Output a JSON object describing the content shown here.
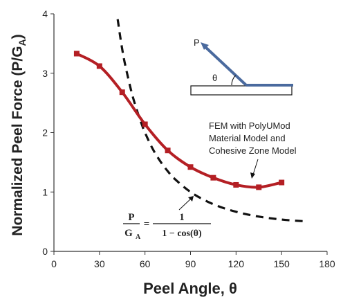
{
  "chart_data": {
    "type": "line",
    "xlabel": "Peel Angle, θ",
    "ylabel": "Normalized Peel Force (P/G",
    "ylabel_sub": "A",
    "ylabel_close": ")",
    "xlim": [
      0,
      180
    ],
    "ylim": [
      0,
      4
    ],
    "xticks": [
      "0",
      "30",
      "60",
      "90",
      "120",
      "150",
      "180"
    ],
    "yticks": [
      "0",
      "1",
      "2",
      "3",
      "4"
    ],
    "grid": false,
    "series": [
      {
        "name": "FEM with PolyUMod Material Model and Cohesive Zone Model",
        "style": "solid",
        "color": "#b41f24",
        "marker": "square",
        "x": [
          15,
          30,
          45,
          60,
          75,
          90,
          105,
          120,
          135,
          150
        ],
        "y": [
          3.33,
          3.12,
          2.68,
          2.14,
          1.7,
          1.42,
          1.24,
          1.12,
          1.08,
          1.16
        ]
      },
      {
        "name": "P/G_A = 1/(1 − cos(θ))",
        "style": "dashed",
        "color": "#111111",
        "x": [
          42,
          44,
          46,
          48,
          50,
          52,
          55,
          58,
          60,
          65,
          70,
          75,
          80,
          90,
          100,
          110,
          120,
          130,
          140,
          150,
          160,
          165
        ],
        "y": [
          3.91,
          3.56,
          3.26,
          3.02,
          2.8,
          2.6,
          2.35,
          2.13,
          2.0,
          1.73,
          1.52,
          1.35,
          1.21,
          1.0,
          0.853,
          0.745,
          0.667,
          0.609,
          0.566,
          0.536,
          0.515,
          0.508
        ]
      }
    ],
    "annotations": {
      "fem_line1": "FEM with PolyUMod",
      "fem_line2": "Material Model and",
      "fem_line3": "Cohesive Zone Model",
      "eq_num_left": "P",
      "eq_den_left": "G",
      "eq_den_left_sub": "A",
      "eq_equals": "=",
      "eq_num_right": "1",
      "eq_den_right": "1 − cos(θ)"
    },
    "inset": {
      "force_label": "P",
      "angle_label": "θ",
      "arm_color": "#4a6a9e"
    }
  }
}
